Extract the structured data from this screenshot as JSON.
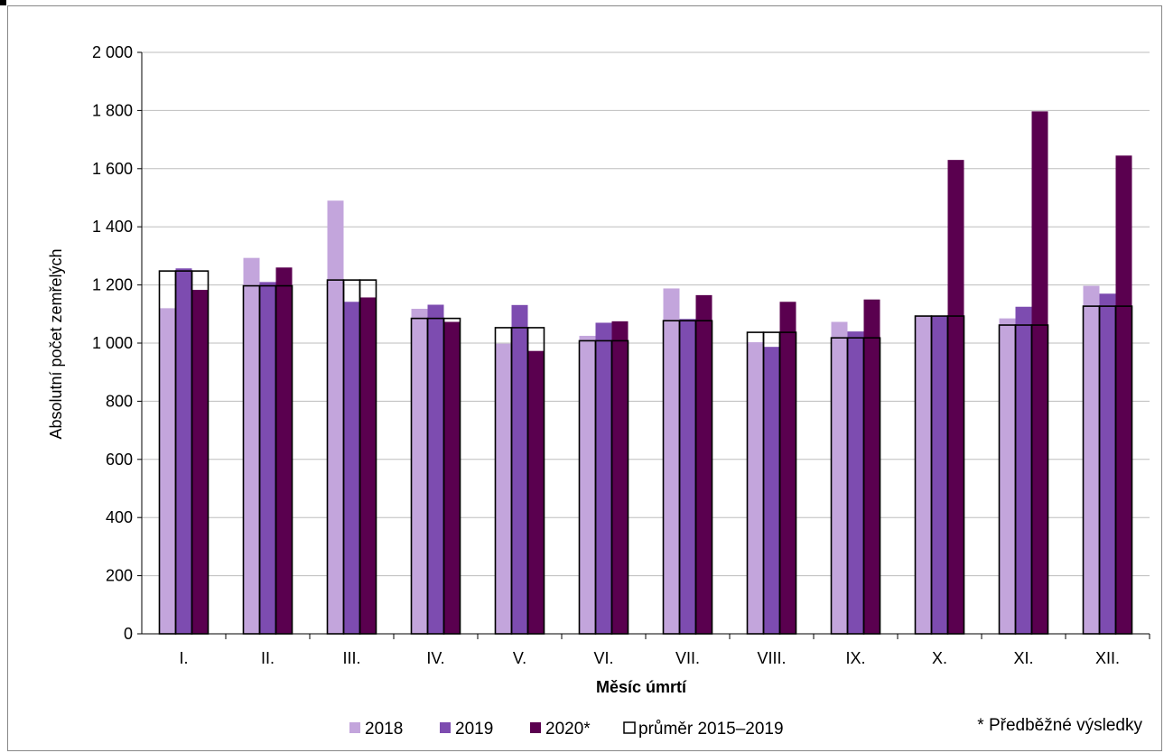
{
  "chart_data": {
    "type": "bar",
    "xlabel": "Měsíc úmrtí",
    "ylabel": "Absolutní počet zemřelých",
    "ylim": [
      0,
      2000
    ],
    "y_ticks": [
      0,
      200,
      400,
      600,
      800,
      1000,
      1200,
      1400,
      1600,
      1800,
      2000
    ],
    "y_tick_labels": [
      "0",
      "200",
      "400",
      "600",
      "800",
      "1 000",
      "1 200",
      "1 400",
      "1 600",
      "1 800",
      "2 000"
    ],
    "grid": true,
    "legend_position": "bottom",
    "categories": [
      "I.",
      "II.",
      "III.",
      "IV.",
      "V.",
      "VI.",
      "VII.",
      "VIII.",
      "IX.",
      "X.",
      "XI.",
      "XII."
    ],
    "series": [
      {
        "name": "2018",
        "color": "#c3a5dc",
        "values": [
          1120,
          1293,
          1490,
          1118,
          998,
          1025,
          1188,
          1003,
          1073,
          1093,
          1085,
          1197
        ]
      },
      {
        "name": "2019",
        "color": "#7d4cb0",
        "values": [
          1257,
          1210,
          1142,
          1132,
          1131,
          1070,
          1083,
          987,
          1040,
          1093,
          1125,
          1170
        ]
      },
      {
        "name": "2020*",
        "color": "#5a004f",
        "values": [
          1183,
          1260,
          1157,
          1073,
          973,
          1075,
          1165,
          1142,
          1150,
          1630,
          1797,
          1645
        ]
      }
    ],
    "average": {
      "name": "průměr 2015–2019",
      "values": [
        1248,
        1197,
        1217,
        1085,
        1053,
        1008,
        1077,
        1037,
        1018,
        1093,
        1062,
        1127
      ]
    },
    "note": "* Předběžné výsledky"
  }
}
